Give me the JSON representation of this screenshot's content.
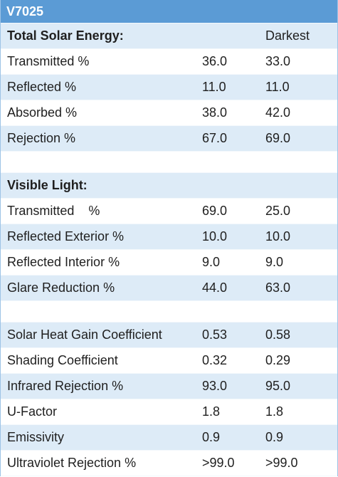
{
  "header": {
    "title": "V7025"
  },
  "sections": [
    {
      "title": "Total Solar Energy:",
      "column_header": "Darkest",
      "rows": [
        [
          "Transmitted %",
          "36.0",
          "33.0"
        ],
        [
          "Reflected %",
          "11.0",
          "11.0"
        ],
        [
          "Absorbed %",
          "38.0",
          "42.0"
        ],
        [
          "Rejection %",
          "67.0",
          "69.0"
        ]
      ]
    },
    {
      "title": "Visible Light:",
      "rows": [
        [
          "Transmitted    %",
          "69.0",
          "25.0"
        ],
        [
          "Reflected Exterior %",
          "10.0",
          "10.0"
        ],
        [
          "Reflected Interior %",
          "9.0",
          "9.0"
        ],
        [
          "Glare Reduction %",
          "44.0",
          "63.0"
        ]
      ]
    },
    {
      "rows": [
        [
          "Solar Heat Gain Coefficient",
          "0.53",
          "0.58"
        ],
        [
          "Shading Coefficient",
          "0.32",
          "0.29"
        ],
        [
          "Infrared Rejection %",
          "93.0",
          "95.0"
        ],
        [
          "U-Factor",
          "1.8",
          "1.8"
        ],
        [
          "Emissivity",
          "0.9",
          "0.9"
        ],
        [
          "Ultraviolet Rejection %",
          ">99.0",
          ">99.0"
        ]
      ]
    }
  ]
}
